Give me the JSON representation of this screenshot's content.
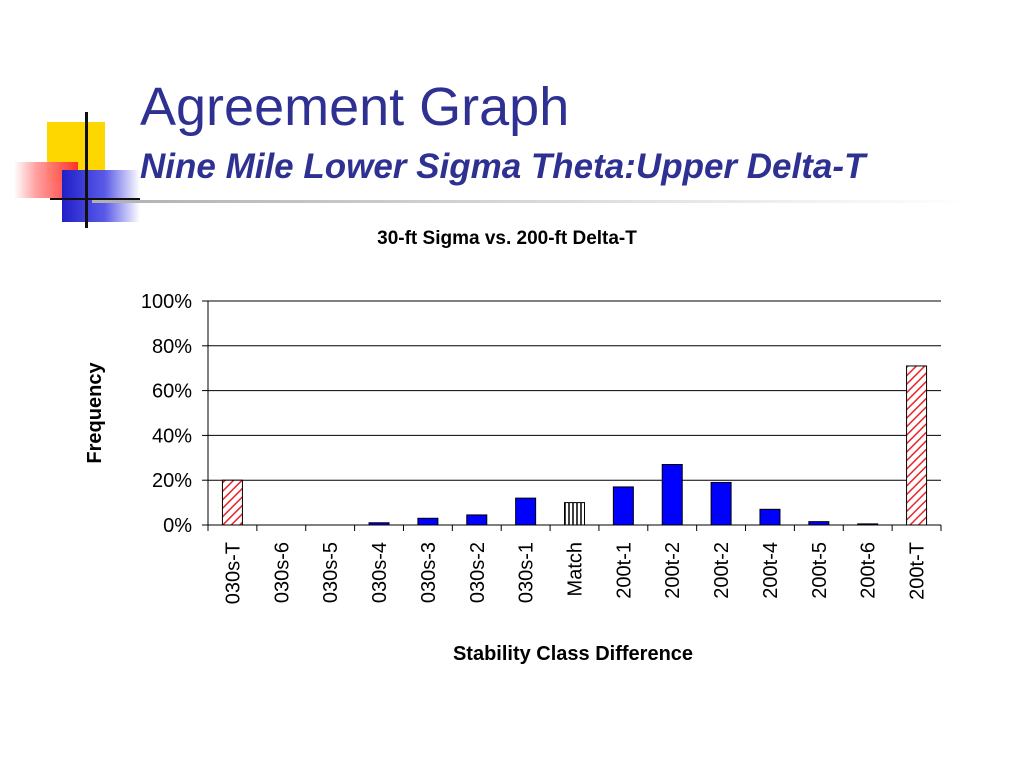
{
  "slide": {
    "title": "Agreement Graph",
    "subtitle": "Nine Mile Lower Sigma Theta:Upper Delta-T"
  },
  "colors": {
    "title": "#2e3192",
    "bar_main": "#0000ff",
    "bar_extreme_hatch": "#e8262b",
    "bar_match_hatch": "#000000"
  },
  "chart_data": {
    "type": "bar",
    "title": "30-ft Sigma vs. 200-ft Delta-T",
    "xlabel": "Stability Class Difference",
    "ylabel": "Frequency",
    "ylim": [
      0,
      1
    ],
    "yticks": [
      "0%",
      "20%",
      "40%",
      "60%",
      "80%",
      "100%"
    ],
    "grid": true,
    "categories": [
      "030s-T",
      "030s-6",
      "030s-5",
      "030s-4",
      "030s-3",
      "030s-2",
      "030s-1",
      "Match",
      "200t-1",
      "200t-2",
      "200t-2",
      "200t-4",
      "200t-5",
      "200t-6",
      "200t-T"
    ],
    "values": [
      0.2,
      0.0,
      0.0,
      0.01,
      0.03,
      0.045,
      0.12,
      0.1,
      0.17,
      0.27,
      0.19,
      0.07,
      0.015,
      0.005,
      0.71
    ],
    "styles": [
      "hatch-red",
      "solid",
      "solid",
      "solid",
      "solid",
      "solid",
      "solid",
      "hatch-black",
      "solid",
      "solid",
      "solid",
      "solid",
      "solid",
      "solid",
      "hatch-red"
    ]
  }
}
